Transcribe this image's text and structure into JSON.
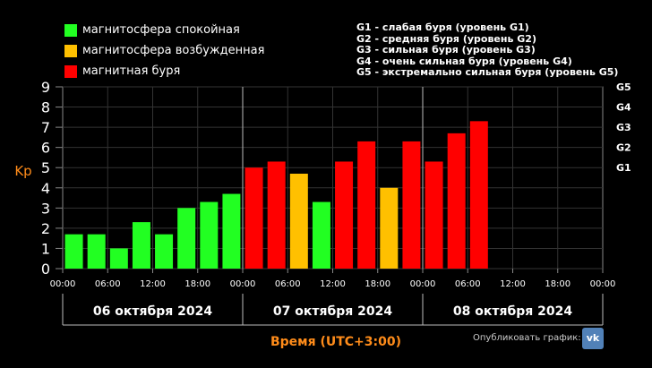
{
  "chart_data": {
    "type": "bar",
    "ylabel": "Kp",
    "xlabel": "Время (UTC+3:00)",
    "ylim": [
      0,
      9
    ],
    "yticks": [
      "0",
      "1",
      "2",
      "3",
      "4",
      "5",
      "6",
      "7",
      "8",
      "9"
    ],
    "right_ticks": [
      {
        "label": "G1",
        "value": 5
      },
      {
        "label": "G2",
        "value": 6
      },
      {
        "label": "G3",
        "value": 7
      },
      {
        "label": "G4",
        "value": 8
      },
      {
        "label": "G5",
        "value": 9
      }
    ],
    "x_ticks": [
      "00:00",
      "06:00",
      "12:00",
      "18:00",
      "00:00",
      "06:00",
      "12:00",
      "18:00",
      "00:00",
      "06:00",
      "12:00",
      "18:00",
      "00:00"
    ],
    "days": [
      "06 октября 2024",
      "07 октября 2024",
      "08 октября 2024"
    ],
    "categories": [
      "00:00",
      "03:00",
      "06:00",
      "09:00",
      "12:00",
      "15:00",
      "18:00",
      "21:00",
      "00:00",
      "03:00",
      "06:00",
      "09:00",
      "12:00",
      "15:00",
      "18:00",
      "21:00",
      "00:00",
      "03:00",
      "06:00"
    ],
    "values": [
      1.7,
      1.7,
      1.0,
      2.3,
      1.7,
      3.0,
      3.3,
      3.7,
      5.0,
      5.3,
      4.7,
      3.3,
      5.3,
      6.3,
      4.0,
      6.3,
      5.3,
      6.7,
      7.3
    ],
    "grid": true,
    "colors": {
      "quiet": "#22ff22",
      "active": "#ffc000",
      "storm": "#ff0000"
    }
  },
  "legend": {
    "items": [
      {
        "label": "магнитосфера спокойная",
        "color": "#22ff22"
      },
      {
        "label": "магнитосфера возбужденная",
        "color": "#ffc000"
      },
      {
        "label": "магнитная буря",
        "color": "#ff0000"
      }
    ],
    "storm_levels": [
      "G1 - слабая буря (уровень G1)",
      "G2 - средняя буря (уровень G2)",
      "G3 - сильная буря (уровень G3)",
      "G4 - очень сильная буря (уровень G4)",
      "G5 - экстремально сильная буря (уровень G5)"
    ]
  },
  "footer": {
    "publish_label": "Опубликовать график:",
    "vk_icon": "vk-icon",
    "vk_text": "vk"
  }
}
